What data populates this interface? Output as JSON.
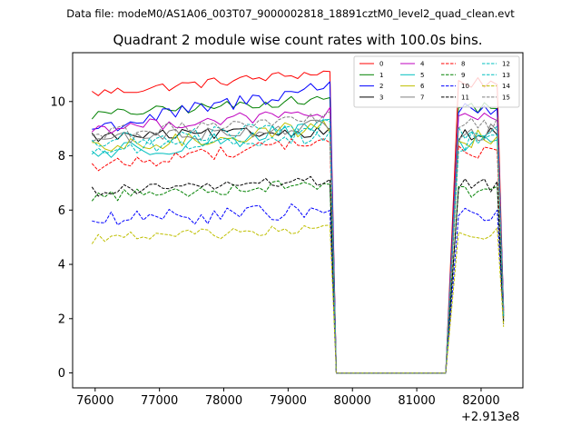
{
  "suptitle": "Data file: modeM0/AS1A06_003T07_9000002818_18891cztM0_level2_quad_clean.evt",
  "chart_data": {
    "type": "line",
    "title": "Quadrant 2 module wise count rates with 100.0s bins.",
    "xlabel": "",
    "ylabel": "",
    "x_offset_label": "+2.913e8",
    "xlim": [
      75650,
      82650
    ],
    "ylim": [
      -0.55,
      11.8
    ],
    "xticks": [
      76000,
      77000,
      78000,
      79000,
      80000,
      81000,
      82000
    ],
    "yticks": [
      0,
      2,
      4,
      6,
      8,
      10
    ],
    "legend_position": "top-right",
    "x_start": 75950,
    "x_step": 100,
    "active_bins": 38,
    "gap_start_index": 38,
    "gap_end_index": 55,
    "second_segment_start": 56,
    "total_points": 65,
    "series": [
      {
        "name": "0",
        "color": "#ff0000",
        "dash": "solid",
        "base": 10.3,
        "noise": 0.18,
        "trend": 0.8,
        "end": 2.3
      },
      {
        "name": "1",
        "color": "#008000",
        "dash": "solid",
        "base": 9.5,
        "noise": 0.18,
        "trend": 0.6,
        "end": 2.2
      },
      {
        "name": "2",
        "color": "#0000ff",
        "dash": "solid",
        "base": 9.0,
        "noise": 0.3,
        "trend": 1.6,
        "end": 2.4
      },
      {
        "name": "3",
        "color": "#000000",
        "dash": "solid",
        "base": 8.7,
        "noise": 0.2,
        "trend": 0.2,
        "end": 2.1
      },
      {
        "name": "4",
        "color": "#bf00bf",
        "dash": "solid",
        "base": 9.0,
        "noise": 0.22,
        "trend": 0.6,
        "end": 2.3
      },
      {
        "name": "5",
        "color": "#00bfbf",
        "dash": "solid",
        "base": 8.1,
        "noise": 0.35,
        "trend": 0.9,
        "end": 2.0
      },
      {
        "name": "6",
        "color": "#bfbf00",
        "dash": "solid",
        "base": 8.2,
        "noise": 0.3,
        "trend": 0.9,
        "end": 2.0
      },
      {
        "name": "7",
        "color": "#808080",
        "dash": "solid",
        "base": 8.6,
        "noise": 0.25,
        "trend": 0.5,
        "end": 2.2
      },
      {
        "name": "8",
        "color": "#ff0000",
        "dash": "dashed",
        "base": 7.6,
        "noise": 0.25,
        "trend": 1.0,
        "end": 2.0
      },
      {
        "name": "9",
        "color": "#008000",
        "dash": "dashed",
        "base": 6.5,
        "noise": 0.22,
        "trend": 0.5,
        "end": 1.9
      },
      {
        "name": "10",
        "color": "#0000ff",
        "dash": "dashed",
        "base": 5.6,
        "noise": 0.3,
        "trend": 0.4,
        "end": 1.9
      },
      {
        "name": "11",
        "color": "#000000",
        "dash": "dashed",
        "base": 6.7,
        "noise": 0.2,
        "trend": 0.4,
        "end": 1.8
      },
      {
        "name": "12",
        "color": "#00bfbf",
        "dash": "dashed",
        "base": 8.2,
        "noise": 0.3,
        "trend": 0.6,
        "end": 2.1
      },
      {
        "name": "13",
        "color": "#00bfbf",
        "dash": "dashed",
        "base": 8.5,
        "noise": 0.3,
        "trend": 0.6,
        "end": 2.1
      },
      {
        "name": "14",
        "color": "#bfbf00",
        "dash": "dashed",
        "base": 4.95,
        "noise": 0.2,
        "trend": 0.35,
        "end": 1.7
      },
      {
        "name": "15",
        "color": "#808080",
        "dash": "dashed",
        "base": 8.8,
        "noise": 0.25,
        "trend": 0.6,
        "end": 2.2
      }
    ]
  }
}
